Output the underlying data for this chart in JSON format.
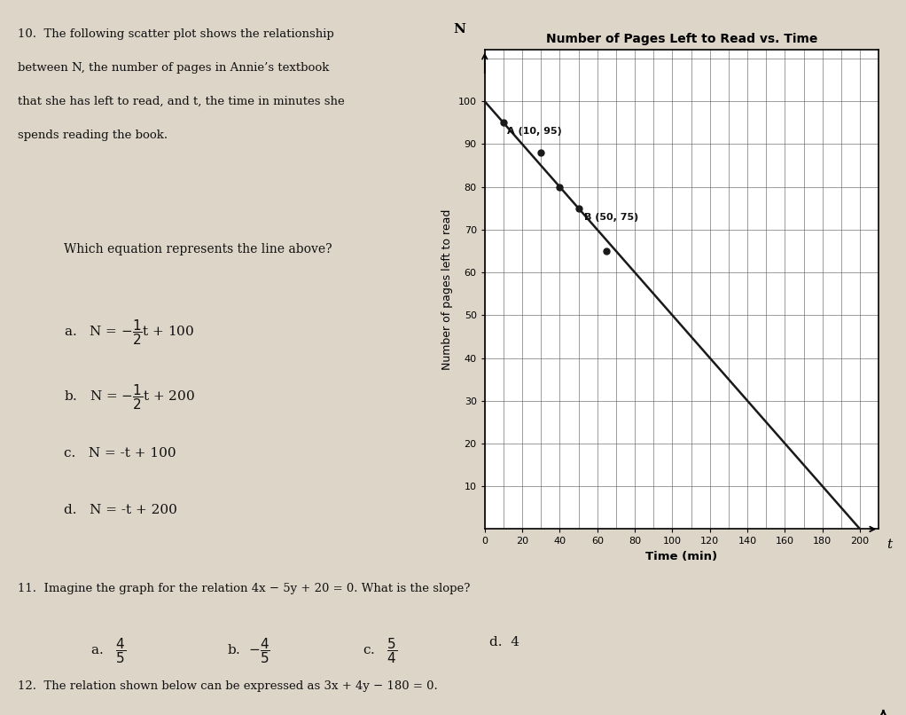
{
  "paper_color": "#ddd5c8",
  "question10_text": [
    "10.  The following scatter plot shows the relationship",
    "between N, the number of pages in Annie’s textbook",
    "that she has left to read, and t, the time in minutes she",
    "spends reading the book."
  ],
  "which_eq_text": "Which equation represents the line above?",
  "chart_title": "Number of Pages Left to Read vs. Time",
  "x_label": "Time (min)",
  "y_label": "Number of pages left to read",
  "x_axis_label": "t",
  "y_axis_label": "N",
  "x_ticks": [
    0,
    20,
    40,
    60,
    80,
    100,
    120,
    140,
    160,
    180,
    200
  ],
  "y_ticks": [
    10,
    20,
    30,
    40,
    50,
    60,
    70,
    80,
    90,
    100
  ],
  "scatter_points": [
    [
      10,
      95
    ],
    [
      30,
      88
    ],
    [
      40,
      80
    ],
    [
      50,
      75
    ],
    [
      65,
      65
    ]
  ],
  "line_points": [
    [
      0,
      100
    ],
    [
      200,
      0
    ]
  ],
  "point_A": [
    10,
    95
  ],
  "point_B": [
    50,
    75
  ],
  "label_A": "A (10, 95)",
  "label_B": "B (50, 75)",
  "question11_text": "11.  Imagine the graph for the relation 4x − 5y + 20 = 0. What is the slope?",
  "question12_text": "12.  The relation shown below can be expressed as 3x + 4y − 180 = 0.",
  "line_color": "#1a1a1a",
  "scatter_color": "#1a1a1a",
  "grid_color": "#555555"
}
